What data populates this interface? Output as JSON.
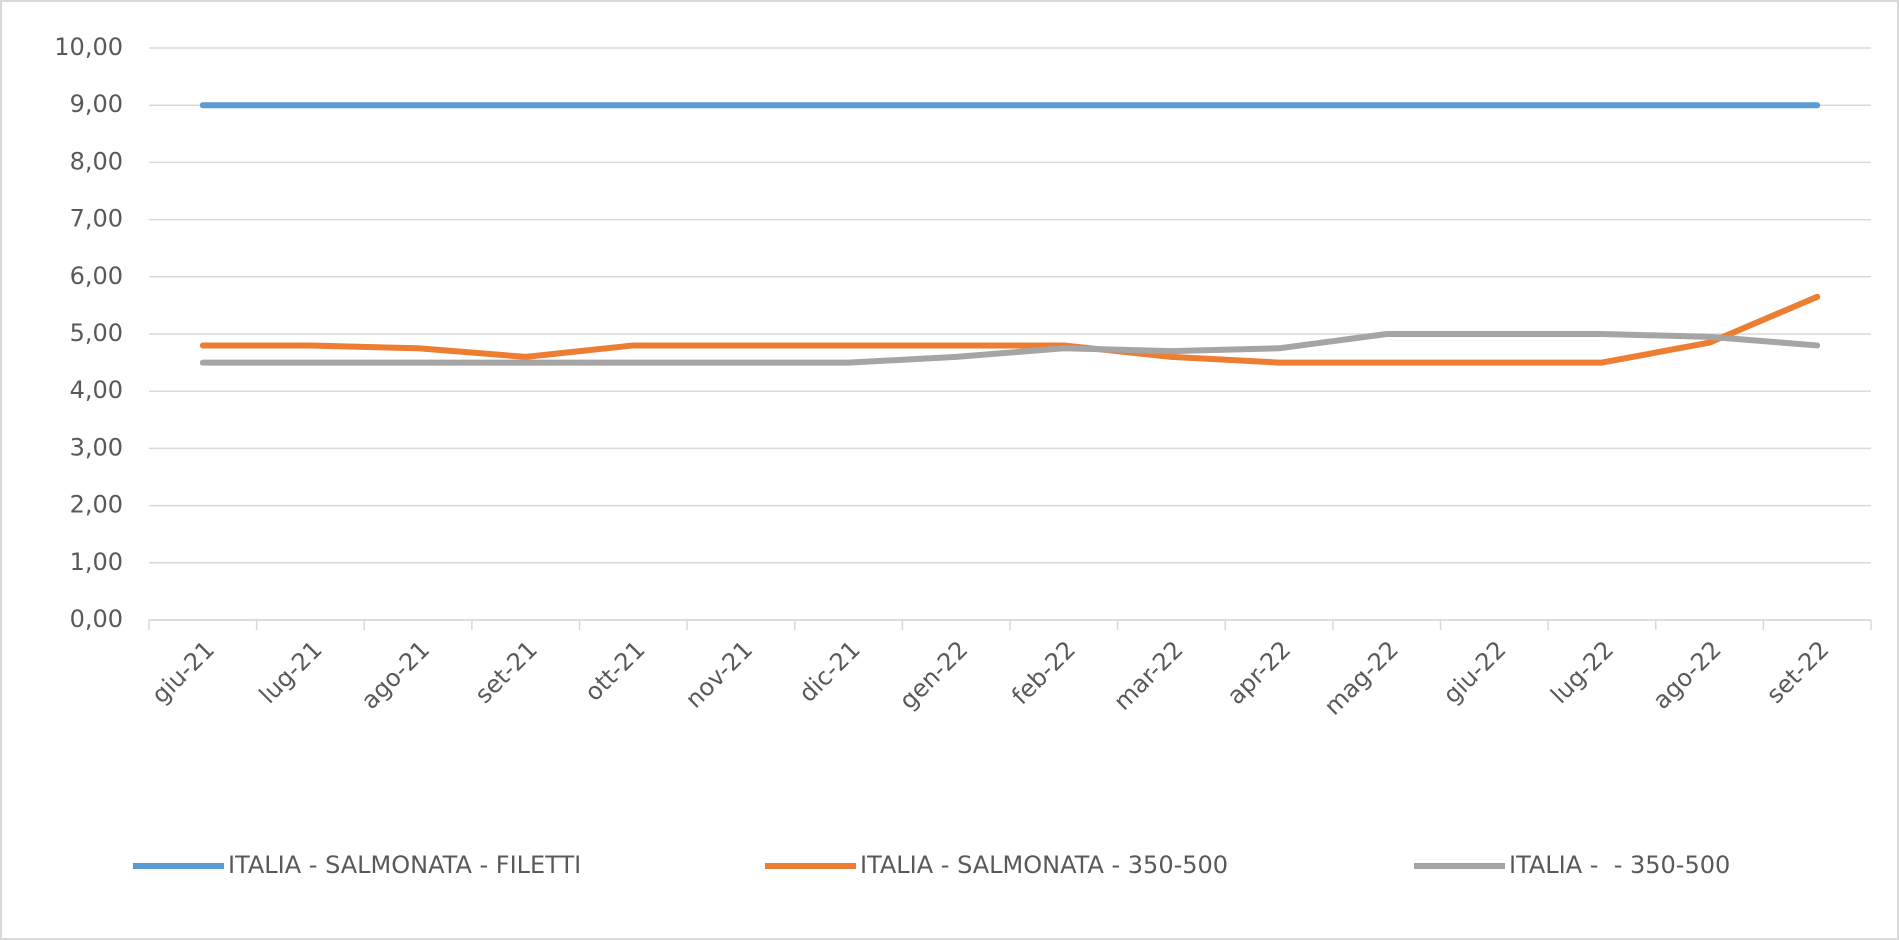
{
  "chart_data": {
    "type": "line",
    "categories": [
      "giu-21",
      "lug-21",
      "ago-21",
      "set-21",
      "ott-21",
      "nov-21",
      "dic-21",
      "gen-22",
      "feb-22",
      "mar-22",
      "apr-22",
      "mag-22",
      "giu-22",
      "lug-22",
      "ago-22",
      "set-22"
    ],
    "series": [
      {
        "name": "ITALIA - SALMONATA - FILETTI",
        "color": "#5b9bd5",
        "values": [
          9,
          9,
          9,
          9,
          9,
          9,
          9,
          9,
          9,
          9,
          9,
          9,
          9,
          9,
          9,
          9
        ]
      },
      {
        "name": "ITALIA - SALMONATA - 350-500",
        "color": "#ed7d31",
        "values": [
          4.8,
          4.8,
          4.75,
          4.6,
          4.8,
          4.8,
          4.8,
          4.8,
          4.8,
          4.6,
          4.5,
          4.5,
          4.5,
          4.5,
          4.85,
          5.65
        ]
      },
      {
        "name": "ITALIA -  - 350-500",
        "color": "#a5a5a5",
        "values": [
          4.5,
          4.5,
          4.5,
          4.5,
          4.5,
          4.5,
          4.5,
          4.6,
          4.75,
          4.7,
          4.75,
          5.0,
          5.0,
          5.0,
          4.95,
          4.8
        ]
      }
    ],
    "ylim": [
      0,
      10
    ],
    "yticks": [
      {
        "value": 0,
        "label": "0,00"
      },
      {
        "value": 1,
        "label": "1,00"
      },
      {
        "value": 2,
        "label": "2,00"
      },
      {
        "value": 3,
        "label": "3,00"
      },
      {
        "value": 4,
        "label": "4,00"
      },
      {
        "value": 5,
        "label": "5,00"
      },
      {
        "value": 6,
        "label": "6,00"
      },
      {
        "value": 7,
        "label": "7,00"
      },
      {
        "value": 8,
        "label": "8,00"
      },
      {
        "value": 9,
        "label": "9,00"
      },
      {
        "value": 10,
        "label": "10,00"
      }
    ],
    "grid": true,
    "legend": "bottom"
  }
}
